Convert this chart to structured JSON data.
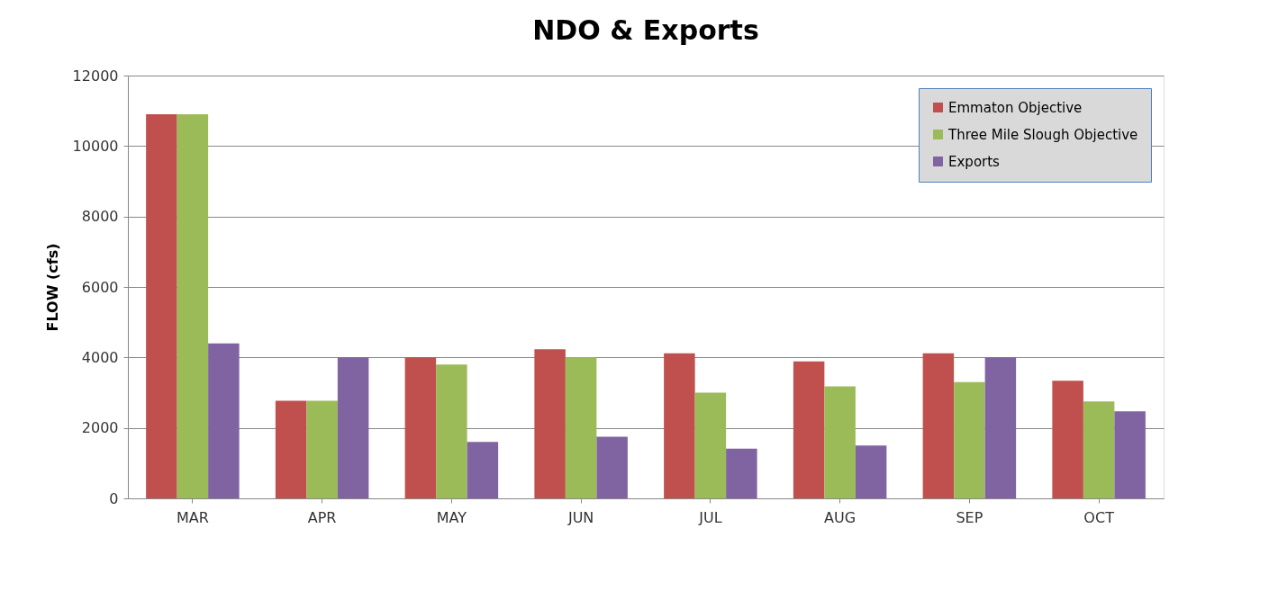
{
  "chart_data": {
    "type": "bar",
    "title": "NDO & Exports",
    "ylabel": "FLOW (cfs)",
    "categories": [
      "MAR",
      "APR",
      "MAY",
      "JUN",
      "JUL",
      "AUG",
      "SEP",
      "OCT"
    ],
    "series": [
      {
        "name": "Emmaton Objective",
        "color": "#c0504d",
        "values": [
          10900,
          2770,
          4000,
          4230,
          4120,
          3890,
          4120,
          3340
        ]
      },
      {
        "name": "Three Mile Slough Objective",
        "color": "#9bbb59",
        "values": [
          10900,
          2770,
          3800,
          4000,
          3000,
          3180,
          3300,
          2750
        ]
      },
      {
        "name": "Exports",
        "color": "#8064a2",
        "values": [
          4400,
          4000,
          1600,
          1750,
          1410,
          1500,
          4000,
          2470
        ]
      }
    ],
    "ylim": [
      0,
      12000
    ],
    "yticks": [
      0,
      2000,
      4000,
      6000,
      8000,
      10000,
      12000
    ],
    "grid": "y",
    "legend": "top right"
  }
}
